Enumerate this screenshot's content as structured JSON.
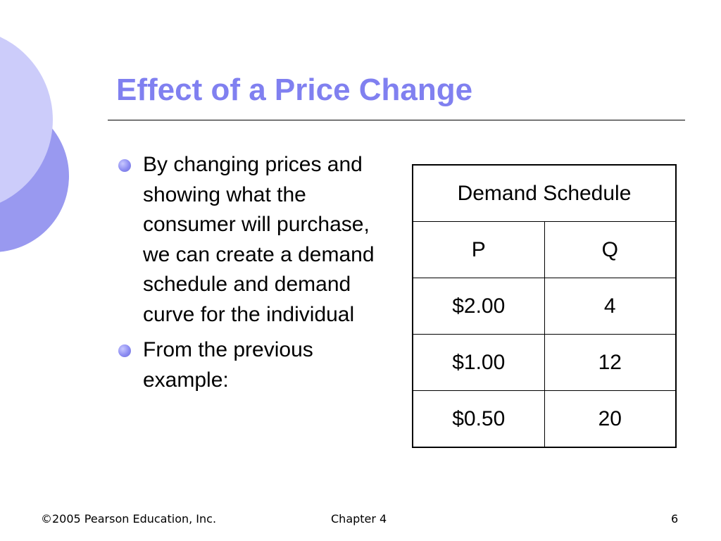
{
  "slide": {
    "title": "Effect of a Price Change",
    "accent_color": "#8080f0"
  },
  "bullets": [
    {
      "text": "By changing prices and showing what the consumer will purchase, we can create a demand schedule and demand curve for the individual"
    },
    {
      "text": "From the previous example:"
    }
  ],
  "table": {
    "caption": "Demand Schedule",
    "columns": [
      "P",
      "Q"
    ],
    "rows": [
      [
        "$2.00",
        "4"
      ],
      [
        "$1.00",
        "12"
      ],
      [
        "$0.50",
        "20"
      ]
    ]
  },
  "footer": {
    "copyright": "©2005 Pearson Education, Inc.",
    "chapter": "Chapter 4",
    "page_number": "6"
  }
}
